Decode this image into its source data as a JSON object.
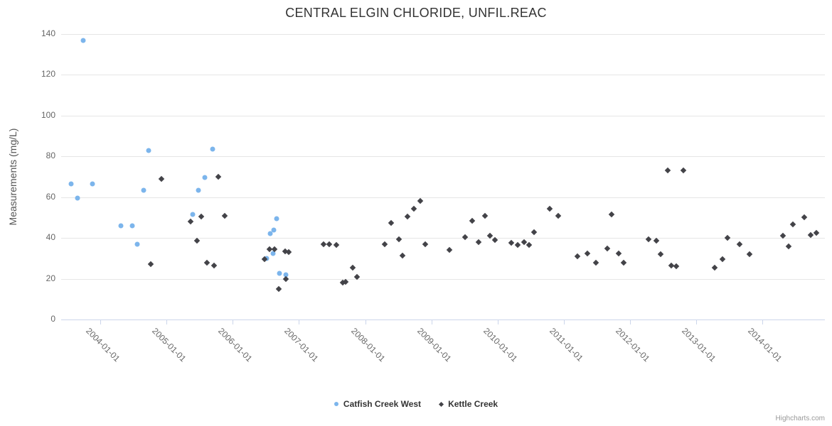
{
  "title": "CENTRAL ELGIN CHLORIDE, UNFIL.REAC",
  "credits": "Highcharts.com",
  "chart_data": {
    "type": "scatter",
    "title": "CENTRAL ELGIN CHLORIDE, UNFIL.REAC",
    "xlabel": "",
    "ylabel": "Measurements (mg/L)",
    "ylim": [
      0,
      140
    ],
    "xlim": [
      2003.41,
      2014.94
    ],
    "yticks": [
      0,
      20,
      40,
      60,
      80,
      100,
      120,
      140
    ],
    "xticks": [
      {
        "x": 2004,
        "label": "2004-01-01"
      },
      {
        "x": 2005,
        "label": "2005-01-01"
      },
      {
        "x": 2006,
        "label": "2006-01-01"
      },
      {
        "x": 2007,
        "label": "2007-01-01"
      },
      {
        "x": 2008,
        "label": "2008-01-01"
      },
      {
        "x": 2009,
        "label": "2009-01-01"
      },
      {
        "x": 2010,
        "label": "2010-01-01"
      },
      {
        "x": 2011,
        "label": "2011-01-01"
      },
      {
        "x": 2012,
        "label": "2012-01-01"
      },
      {
        "x": 2013,
        "label": "2013-01-01"
      },
      {
        "x": 2014,
        "label": "2014-01-01"
      }
    ],
    "grid": "horizontal",
    "legend_position": "bottom-center",
    "series": [
      {
        "name": "Catfish Creek West",
        "color": "#7cb5ec",
        "marker": "circle",
        "points": [
          [
            2003.56,
            66.5
          ],
          [
            2003.66,
            59.5
          ],
          [
            2003.74,
            137
          ],
          [
            2003.88,
            66.5
          ],
          [
            2004.31,
            46
          ],
          [
            2004.48,
            46
          ],
          [
            2004.56,
            37
          ],
          [
            2004.65,
            63.5
          ],
          [
            2004.73,
            83
          ],
          [
            2005.4,
            51.5
          ],
          [
            2005.48,
            63.5
          ],
          [
            2005.58,
            69.5
          ],
          [
            2005.7,
            83.5
          ],
          [
            2006.51,
            30
          ],
          [
            2006.57,
            42
          ],
          [
            2006.61,
            32.5
          ],
          [
            2006.62,
            44
          ],
          [
            2006.66,
            49.5
          ],
          [
            2006.71,
            22.5
          ],
          [
            2006.8,
            22
          ]
        ]
      },
      {
        "name": "Kettle Creek",
        "color": "#434348",
        "marker": "diamond",
        "points": [
          [
            2004.76,
            27
          ],
          [
            2004.92,
            69
          ],
          [
            2005.36,
            48
          ],
          [
            2005.46,
            38.5
          ],
          [
            2005.53,
            50.5
          ],
          [
            2005.61,
            28
          ],
          [
            2005.72,
            26.5
          ],
          [
            2005.78,
            70
          ],
          [
            2005.88,
            51
          ],
          [
            2006.48,
            29.5
          ],
          [
            2006.56,
            34.5
          ],
          [
            2006.63,
            34.5
          ],
          [
            2006.7,
            15
          ],
          [
            2006.79,
            33.5
          ],
          [
            2006.8,
            20
          ],
          [
            2006.85,
            33
          ],
          [
            2007.37,
            37
          ],
          [
            2007.46,
            37
          ],
          [
            2007.57,
            36.5
          ],
          [
            2007.66,
            18
          ],
          [
            2007.7,
            18.5
          ],
          [
            2007.81,
            25.5
          ],
          [
            2007.88,
            21
          ],
          [
            2008.29,
            37
          ],
          [
            2008.39,
            47.5
          ],
          [
            2008.51,
            39.5
          ],
          [
            2008.56,
            31.5
          ],
          [
            2008.64,
            50.5
          ],
          [
            2008.73,
            54.5
          ],
          [
            2008.83,
            58
          ],
          [
            2008.91,
            37
          ],
          [
            2009.27,
            34
          ],
          [
            2009.51,
            40.5
          ],
          [
            2009.62,
            48.5
          ],
          [
            2009.71,
            38
          ],
          [
            2009.81,
            51
          ],
          [
            2009.88,
            41
          ],
          [
            2009.96,
            39
          ],
          [
            2010.21,
            37.5
          ],
          [
            2010.3,
            36.5
          ],
          [
            2010.4,
            38
          ],
          [
            2010.47,
            36.5
          ],
          [
            2010.55,
            43
          ],
          [
            2010.79,
            54.5
          ],
          [
            2010.91,
            51
          ],
          [
            2011.2,
            31
          ],
          [
            2011.35,
            32.5
          ],
          [
            2011.48,
            28
          ],
          [
            2011.65,
            35
          ],
          [
            2011.72,
            51.5
          ],
          [
            2011.83,
            32.5
          ],
          [
            2011.9,
            28
          ],
          [
            2012.28,
            39.5
          ],
          [
            2012.4,
            38.5
          ],
          [
            2012.46,
            32
          ],
          [
            2012.57,
            73
          ],
          [
            2012.62,
            26.5
          ],
          [
            2012.7,
            26
          ],
          [
            2012.8,
            73
          ],
          [
            2013.28,
            25.5
          ],
          [
            2013.39,
            29.5
          ],
          [
            2013.47,
            40
          ],
          [
            2013.65,
            37
          ],
          [
            2013.8,
            32
          ],
          [
            2014.31,
            41
          ],
          [
            2014.39,
            36
          ],
          [
            2014.46,
            46.5
          ],
          [
            2014.63,
            50
          ],
          [
            2014.73,
            41.5
          ],
          [
            2014.81,
            42.5
          ]
        ]
      }
    ]
  }
}
